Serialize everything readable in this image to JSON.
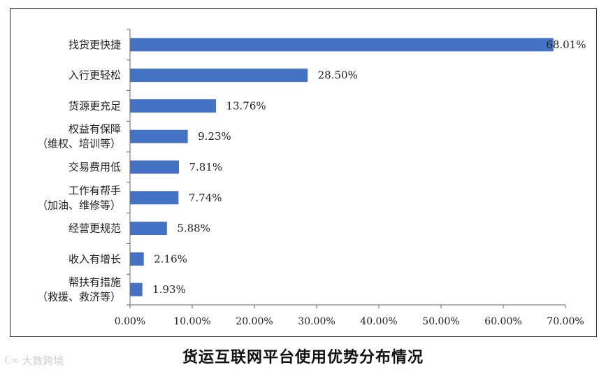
{
  "chart_data": {
    "type": "bar",
    "orientation": "horizontal",
    "categories": [
      [
        "找货更快捷"
      ],
      [
        "入行更轻松"
      ],
      [
        "货源更充足"
      ],
      [
        "权益有保障",
        "（维权、培训等）"
      ],
      [
        "交易费用低"
      ],
      [
        "工作有帮手",
        "（加油、维修等）"
      ],
      [
        "经营更规范"
      ],
      [
        "收入有增长"
      ],
      [
        "帮扶有措施",
        "（救援、救济等）"
      ]
    ],
    "values": [
      68.01,
      28.5,
      13.76,
      9.23,
      7.81,
      7.74,
      5.88,
      2.16,
      1.93
    ],
    "data_labels": [
      "68.01%",
      "28.50%",
      "13.76%",
      "9.23%",
      "7.81%",
      "7.74%",
      "5.88%",
      "2.16%",
      "1.93%"
    ],
    "xticks": [
      0,
      10,
      20,
      30,
      40,
      50,
      60,
      70
    ],
    "xtick_labels": [
      "0.00%",
      "10.00%",
      "20.00%",
      "30.00%",
      "40.00%",
      "50.00%",
      "60.00%",
      "70.00%"
    ],
    "xlim": [
      0,
      70
    ],
    "grid": false,
    "bar_color": "#4472C4",
    "title": "货运互联网平台使用优势分布情况",
    "xlabel": "",
    "ylabel": ""
  },
  "watermark": {
    "text": "大数跨境",
    "icon": "brand-logo-icon"
  }
}
